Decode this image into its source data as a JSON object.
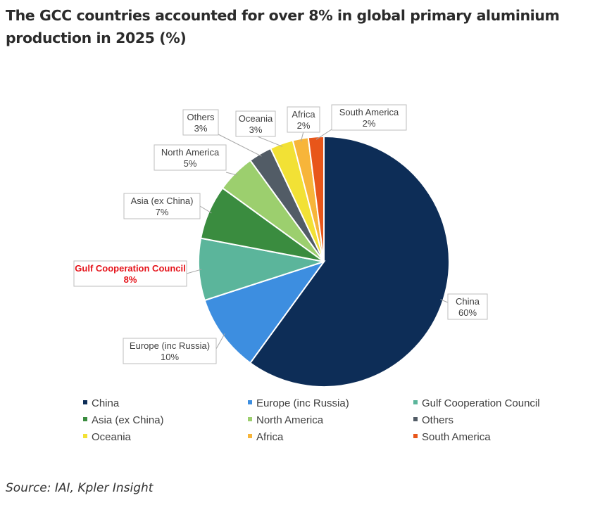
{
  "title": "The GCC countries accounted for over 8% in global primary aluminium production in 2025 (%)",
  "source": "Source: IAI, Kpler Insight",
  "chart_data": {
    "type": "pie",
    "title": "The GCC countries accounted for over 8% in global primary aluminium production in 2025 (%)",
    "unit": "%",
    "legend_position": "bottom",
    "slices": [
      {
        "name": "China",
        "value": 60,
        "label": "60%",
        "color": "#0d2d57"
      },
      {
        "name": "Europe (inc Russia)",
        "value": 10,
        "label": "10%",
        "color": "#3d8ee0"
      },
      {
        "name": "Gulf Cooperation Council",
        "value": 8,
        "label": "8%",
        "color": "#5bb59b",
        "highlight_color": "#e5141b"
      },
      {
        "name": "Asia (ex China)",
        "value": 7,
        "label": "7%",
        "color": "#3a8c3f"
      },
      {
        "name": "North America",
        "value": 5,
        "label": "5%",
        "color": "#9ccf6e"
      },
      {
        "name": "Others",
        "value": 3,
        "label": "3%",
        "color": "#525c66"
      },
      {
        "name": "Oceania",
        "value": 3,
        "label": "3%",
        "color": "#f2e135"
      },
      {
        "name": "Africa",
        "value": 2,
        "label": "2%",
        "color": "#f7b53a"
      },
      {
        "name": "South America",
        "value": 2,
        "label": "2%",
        "color": "#e8561a"
      }
    ]
  }
}
